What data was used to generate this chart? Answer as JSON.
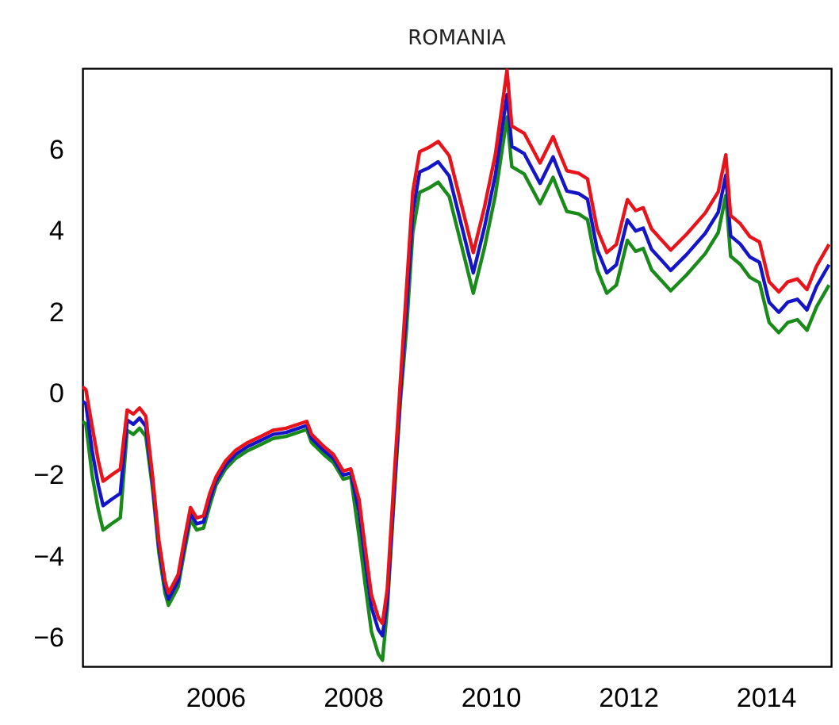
{
  "chart_data": {
    "type": "line",
    "title": "ROMANIA",
    "x": [
      2004.07,
      2004.12,
      2004.21,
      2004.3,
      2004.37,
      2004.49,
      2004.62,
      2004.72,
      2004.81,
      2004.9,
      2004.99,
      2005.09,
      2005.18,
      2005.27,
      2005.32,
      2005.46,
      2005.55,
      2005.64,
      2005.73,
      2005.83,
      2005.92,
      2006.01,
      2006.15,
      2006.29,
      2006.47,
      2006.66,
      2006.84,
      2007.03,
      2007.33,
      2007.4,
      2007.58,
      2007.72,
      2007.86,
      2007.97,
      2008.09,
      2008.18,
      2008.27,
      2008.37,
      2008.43,
      2008.5,
      2008.6,
      2008.69,
      2008.78,
      2008.87,
      2008.97,
      2009.1,
      2009.24,
      2009.4,
      2009.57,
      2009.75,
      2009.91,
      2010.07,
      2010.24,
      2010.31,
      2010.49,
      2010.72,
      2010.91,
      2011.0,
      2011.11,
      2011.28,
      2011.41,
      2011.55,
      2011.69,
      2011.83,
      2011.99,
      2012.11,
      2012.22,
      2012.34,
      2012.48,
      2012.62,
      2012.85,
      2013.12,
      2013.31,
      2013.42,
      2013.49,
      2013.63,
      2013.77,
      2013.91,
      2014.05,
      2014.19,
      2014.32,
      2014.46,
      2014.6,
      2014.74,
      2014.92
    ],
    "series": [
      {
        "color": "#1a8a1a",
        "values": [
          -0.68,
          -0.75,
          -2.0,
          -2.85,
          -3.35,
          -3.2,
          -3.05,
          -0.9,
          -1.0,
          -0.85,
          -1.05,
          -2.35,
          -3.9,
          -4.9,
          -5.2,
          -4.75,
          -3.9,
          -3.1,
          -3.35,
          -3.3,
          -2.75,
          -2.25,
          -1.85,
          -1.6,
          -1.4,
          -1.25,
          -1.1,
          -1.05,
          -0.88,
          -1.2,
          -1.5,
          -1.7,
          -2.1,
          -2.05,
          -3.5,
          -4.7,
          -5.85,
          -6.4,
          -6.55,
          -5.3,
          -2.55,
          -0.2,
          1.6,
          3.95,
          4.95,
          5.05,
          5.2,
          4.85,
          3.7,
          2.47,
          3.57,
          4.87,
          6.8,
          5.58,
          5.4,
          4.67,
          5.32,
          4.93,
          4.48,
          4.42,
          4.28,
          3.05,
          2.47,
          2.67,
          3.77,
          3.5,
          3.57,
          3.05,
          2.79,
          2.53,
          2.92,
          3.44,
          3.96,
          4.87,
          3.38,
          3.18,
          2.86,
          2.73,
          1.75,
          1.5,
          1.75,
          1.82,
          1.56,
          2.14,
          2.67
        ]
      },
      {
        "color": "#1515c8",
        "values": [
          -0.18,
          -0.25,
          -1.4,
          -2.25,
          -2.75,
          -2.6,
          -2.45,
          -0.65,
          -0.75,
          -0.6,
          -0.8,
          -2.2,
          -3.75,
          -4.75,
          -5.05,
          -4.6,
          -3.75,
          -2.95,
          -3.2,
          -3.15,
          -2.6,
          -2.15,
          -1.75,
          -1.5,
          -1.3,
          -1.15,
          -1.0,
          -0.95,
          -0.78,
          -1.1,
          -1.4,
          -1.6,
          -2.0,
          -1.95,
          -2.9,
          -4.1,
          -5.25,
          -5.8,
          -5.95,
          -5.1,
          -2.35,
          0.0,
          2.1,
          4.45,
          5.45,
          5.55,
          5.7,
          5.35,
          4.2,
          2.97,
          4.07,
          5.37,
          7.35,
          6.08,
          5.9,
          5.17,
          5.82,
          5.43,
          4.98,
          4.92,
          4.78,
          3.55,
          2.97,
          3.17,
          4.27,
          4.0,
          4.07,
          3.55,
          3.29,
          3.03,
          3.42,
          3.94,
          4.46,
          5.37,
          3.88,
          3.68,
          3.36,
          3.23,
          2.25,
          2.0,
          2.25,
          2.32,
          2.06,
          2.64,
          3.17
        ]
      },
      {
        "color": "#e8141c",
        "values": [
          0.17,
          0.1,
          -0.8,
          -1.65,
          -2.15,
          -2.0,
          -1.85,
          -0.4,
          -0.5,
          -0.35,
          -0.55,
          -2.05,
          -3.6,
          -4.6,
          -4.9,
          -4.45,
          -3.6,
          -2.8,
          -3.05,
          -3.0,
          -2.45,
          -2.05,
          -1.65,
          -1.4,
          -1.2,
          -1.05,
          -0.9,
          -0.85,
          -0.68,
          -1.0,
          -1.3,
          -1.5,
          -1.9,
          -1.85,
          -2.6,
          -3.8,
          -4.95,
          -5.5,
          -5.65,
          -4.8,
          -2.05,
          0.3,
          2.6,
          4.95,
          5.95,
          6.05,
          6.2,
          5.85,
          4.7,
          3.47,
          4.57,
          5.87,
          7.95,
          6.58,
          6.4,
          5.67,
          6.32,
          5.93,
          5.48,
          5.42,
          5.28,
          4.05,
          3.47,
          3.67,
          4.77,
          4.5,
          4.57,
          4.05,
          3.79,
          3.53,
          3.92,
          4.44,
          4.96,
          5.87,
          4.38,
          4.18,
          3.86,
          3.73,
          2.75,
          2.5,
          2.75,
          2.82,
          2.56,
          3.14,
          3.67
        ]
      }
    ],
    "xlim": [
      2004.07,
      2014.95
    ],
    "xticks": [
      2006,
      2008,
      2010,
      2012,
      2014
    ],
    "ylim": [
      -6.7,
      8
    ],
    "yticks": [
      -6,
      -4,
      -2,
      0,
      2,
      4,
      6
    ]
  }
}
